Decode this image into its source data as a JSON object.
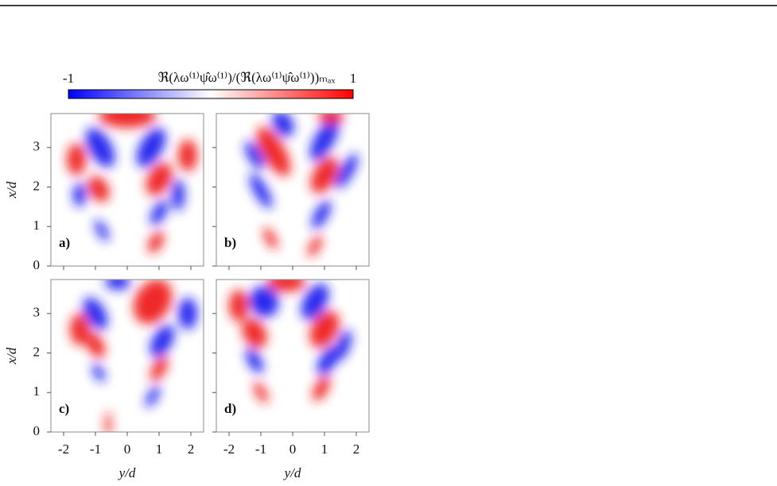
{
  "chart_data": {
    "type": "heatmap",
    "colorbar": {
      "label": "ℜ(λω⁽¹⁾ψ̂ω⁽¹⁾)/(ℜ(λω⁽¹⁾ψ̂ω⁽¹⁾))ₘₐₓ",
      "ticks": [
        -1,
        1
      ],
      "colors": [
        "#0000ff",
        "#ffffff",
        "#ff0000"
      ]
    },
    "xlabel": "y/d",
    "ylabel": "x/d",
    "xlim": [
      -2.4,
      2.4
    ],
    "ylim": [
      0,
      3.86
    ],
    "xticks": [
      -2,
      -1,
      0,
      1,
      2
    ],
    "yticks": [
      0,
      1,
      2,
      3
    ],
    "panels": [
      "a)",
      "b)",
      "c)",
      "d)"
    ]
  }
}
